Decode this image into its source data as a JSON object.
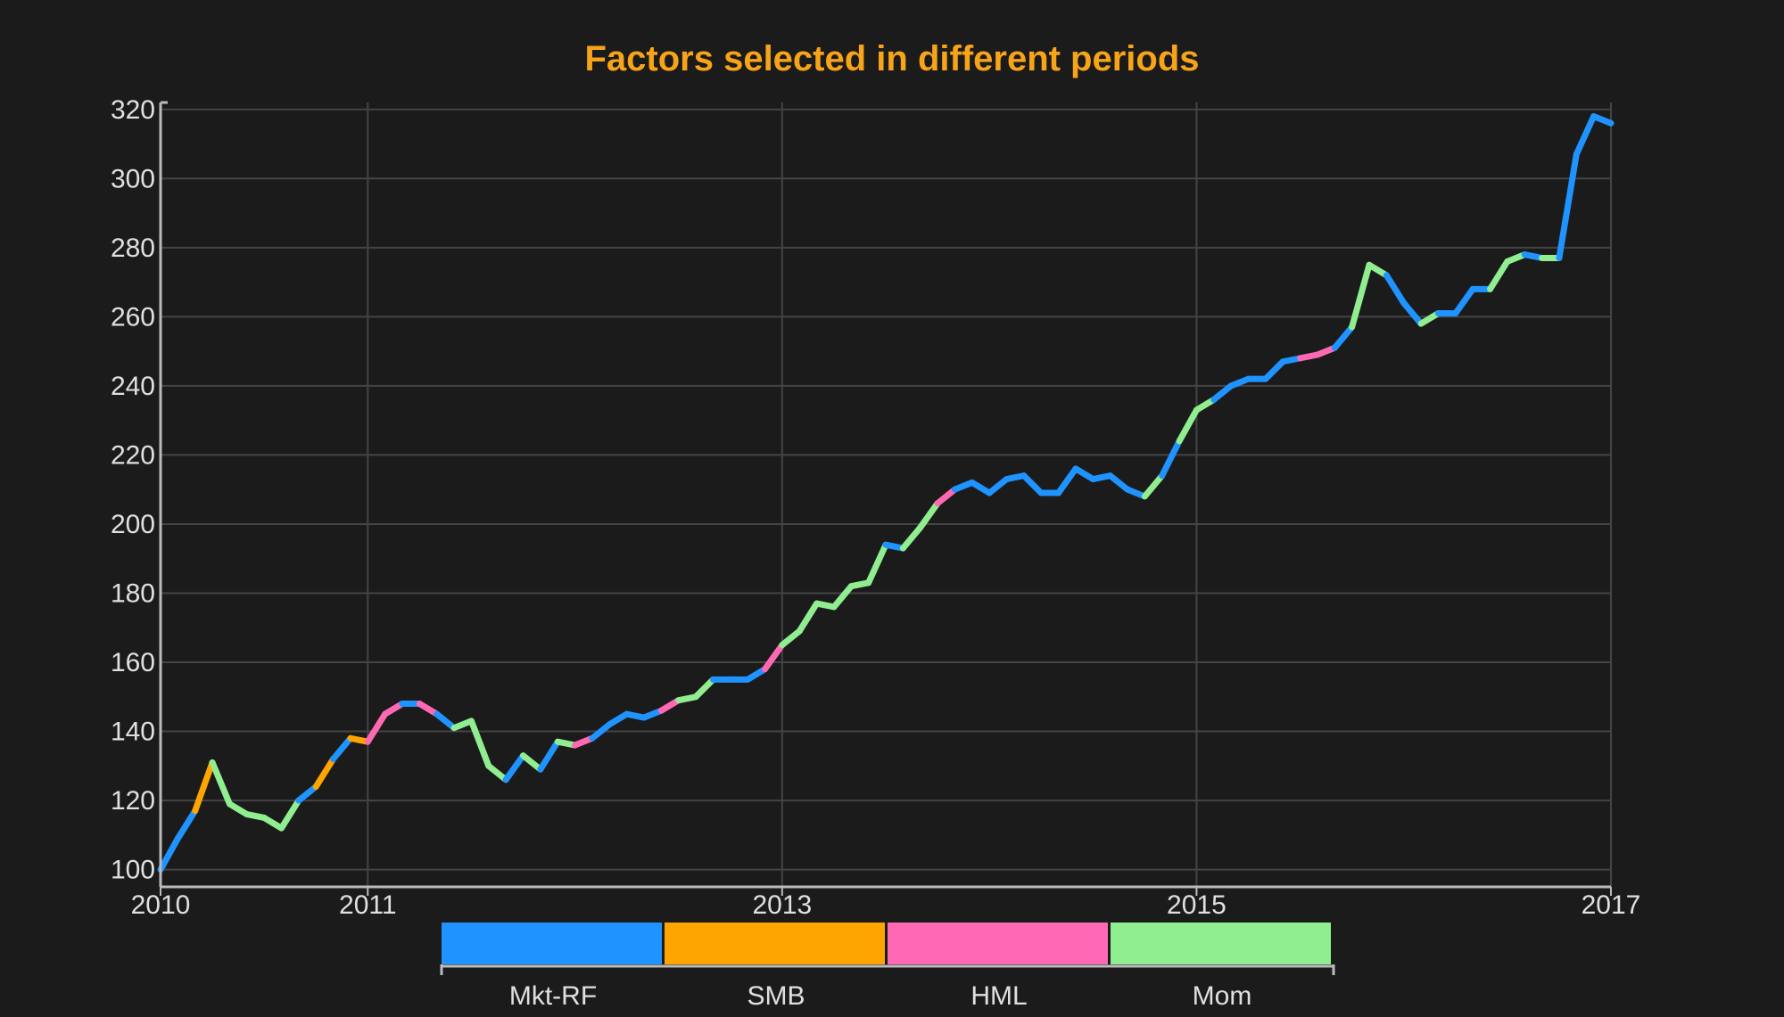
{
  "chart_data": {
    "type": "line",
    "title": "Factors selected in different periods",
    "xlabel": "",
    "ylabel": "",
    "y_ticks": [
      "100",
      "120",
      "140",
      "160",
      "180",
      "200",
      "220",
      "240",
      "260",
      "280",
      "300",
      "320"
    ],
    "x_ticks": [
      "2010",
      "2011",
      "2013",
      "2015",
      "2017"
    ],
    "ylim": [
      95,
      322
    ],
    "grid": true,
    "legend_position": "bottom",
    "factors": [
      {
        "name": "Mkt-RF",
        "color": "#1f93ff"
      },
      {
        "name": "SMB",
        "color": "#ffa500"
      },
      {
        "name": "HML",
        "color": "#ff69b4"
      },
      {
        "name": "Mom",
        "color": "#90ee90"
      }
    ],
    "points": [
      {
        "x": "2010-01",
        "y": 100,
        "f": "Mkt-RF"
      },
      {
        "x": "2010-02",
        "y": 109,
        "f": "Mkt-RF"
      },
      {
        "x": "2010-03",
        "y": 117,
        "f": "Mkt-RF"
      },
      {
        "x": "2010-04",
        "y": 131,
        "f": "SMB"
      },
      {
        "x": "2010-05",
        "y": 119,
        "f": "Mom"
      },
      {
        "x": "2010-06",
        "y": 116,
        "f": "Mom"
      },
      {
        "x": "2010-07",
        "y": 115,
        "f": "Mom"
      },
      {
        "x": "2010-08",
        "y": 112,
        "f": "Mom"
      },
      {
        "x": "2010-09",
        "y": 120,
        "f": "Mom"
      },
      {
        "x": "2010-10",
        "y": 124,
        "f": "Mkt-RF"
      },
      {
        "x": "2010-11",
        "y": 132,
        "f": "SMB"
      },
      {
        "x": "2010-12",
        "y": 138,
        "f": "Mkt-RF"
      },
      {
        "x": "2011-01",
        "y": 137,
        "f": "SMB"
      },
      {
        "x": "2011-02",
        "y": 145,
        "f": "HML"
      },
      {
        "x": "2011-03",
        "y": 148,
        "f": "HML"
      },
      {
        "x": "2011-04",
        "y": 148,
        "f": "Mkt-RF"
      },
      {
        "x": "2011-05",
        "y": 145,
        "f": "HML"
      },
      {
        "x": "2011-06",
        "y": 141,
        "f": "Mkt-RF"
      },
      {
        "x": "2011-07",
        "y": 143,
        "f": "Mom"
      },
      {
        "x": "2011-08",
        "y": 130,
        "f": "Mom"
      },
      {
        "x": "2011-09",
        "y": 126,
        "f": "Mom"
      },
      {
        "x": "2011-10",
        "y": 133,
        "f": "Mkt-RF"
      },
      {
        "x": "2011-11",
        "y": 129,
        "f": "Mom"
      },
      {
        "x": "2011-12",
        "y": 137,
        "f": "Mkt-RF"
      },
      {
        "x": "2012-01",
        "y": 136,
        "f": "Mom"
      },
      {
        "x": "2012-02",
        "y": 138,
        "f": "HML"
      },
      {
        "x": "2012-03",
        "y": 142,
        "f": "Mkt-RF"
      },
      {
        "x": "2012-04",
        "y": 145,
        "f": "Mkt-RF"
      },
      {
        "x": "2012-05",
        "y": 144,
        "f": "Mkt-RF"
      },
      {
        "x": "2012-06",
        "y": 146,
        "f": "Mkt-RF"
      },
      {
        "x": "2012-07",
        "y": 149,
        "f": "HML"
      },
      {
        "x": "2012-08",
        "y": 150,
        "f": "Mom"
      },
      {
        "x": "2012-09",
        "y": 155,
        "f": "Mom"
      },
      {
        "x": "2012-10",
        "y": 155,
        "f": "Mkt-RF"
      },
      {
        "x": "2012-11",
        "y": 155,
        "f": "Mkt-RF"
      },
      {
        "x": "2012-12",
        "y": 158,
        "f": "Mkt-RF"
      },
      {
        "x": "2013-01",
        "y": 165,
        "f": "HML"
      },
      {
        "x": "2013-02",
        "y": 169,
        "f": "Mom"
      },
      {
        "x": "2013-03",
        "y": 177,
        "f": "Mom"
      },
      {
        "x": "2013-04",
        "y": 176,
        "f": "Mom"
      },
      {
        "x": "2013-05",
        "y": 182,
        "f": "Mom"
      },
      {
        "x": "2013-06",
        "y": 183,
        "f": "Mom"
      },
      {
        "x": "2013-07",
        "y": 194,
        "f": "Mom"
      },
      {
        "x": "2013-08",
        "y": 193,
        "f": "Mkt-RF"
      },
      {
        "x": "2013-09",
        "y": 199,
        "f": "Mom"
      },
      {
        "x": "2013-10",
        "y": 206,
        "f": "Mom"
      },
      {
        "x": "2013-11",
        "y": 210,
        "f": "HML"
      },
      {
        "x": "2013-12",
        "y": 212,
        "f": "Mkt-RF"
      },
      {
        "x": "2014-01",
        "y": 209,
        "f": "Mkt-RF"
      },
      {
        "x": "2014-02",
        "y": 213,
        "f": "Mkt-RF"
      },
      {
        "x": "2014-03",
        "y": 214,
        "f": "Mkt-RF"
      },
      {
        "x": "2014-04",
        "y": 209,
        "f": "Mkt-RF"
      },
      {
        "x": "2014-05",
        "y": 209,
        "f": "Mkt-RF"
      },
      {
        "x": "2014-06",
        "y": 216,
        "f": "Mkt-RF"
      },
      {
        "x": "2014-07",
        "y": 213,
        "f": "Mkt-RF"
      },
      {
        "x": "2014-08",
        "y": 214,
        "f": "Mkt-RF"
      },
      {
        "x": "2014-09",
        "y": 210,
        "f": "Mkt-RF"
      },
      {
        "x": "2014-10",
        "y": 208,
        "f": "Mkt-RF"
      },
      {
        "x": "2014-11",
        "y": 214,
        "f": "Mom"
      },
      {
        "x": "2014-12",
        "y": 224,
        "f": "Mkt-RF"
      },
      {
        "x": "2015-01",
        "y": 233,
        "f": "Mom"
      },
      {
        "x": "2015-02",
        "y": 236,
        "f": "Mom"
      },
      {
        "x": "2015-03",
        "y": 240,
        "f": "Mkt-RF"
      },
      {
        "x": "2015-04",
        "y": 242,
        "f": "Mkt-RF"
      },
      {
        "x": "2015-05",
        "y": 242,
        "f": "Mkt-RF"
      },
      {
        "x": "2015-06",
        "y": 247,
        "f": "Mkt-RF"
      },
      {
        "x": "2015-07",
        "y": 248,
        "f": "Mkt-RF"
      },
      {
        "x": "2015-08",
        "y": 249,
        "f": "HML"
      },
      {
        "x": "2015-09",
        "y": 251,
        "f": "HML"
      },
      {
        "x": "2015-10",
        "y": 257,
        "f": "Mkt-RF"
      },
      {
        "x": "2015-11",
        "y": 275,
        "f": "Mom"
      },
      {
        "x": "2015-12",
        "y": 272,
        "f": "Mom"
      },
      {
        "x": "2016-01",
        "y": 264,
        "f": "Mkt-RF"
      },
      {
        "x": "2016-02",
        "y": 258,
        "f": "Mkt-RF"
      },
      {
        "x": "2016-03",
        "y": 261,
        "f": "Mom"
      },
      {
        "x": "2016-04",
        "y": 261,
        "f": "Mkt-RF"
      },
      {
        "x": "2016-05",
        "y": 268,
        "f": "Mkt-RF"
      },
      {
        "x": "2016-06",
        "y": 268,
        "f": "Mkt-RF"
      },
      {
        "x": "2016-07",
        "y": 276,
        "f": "Mom"
      },
      {
        "x": "2016-08",
        "y": 278,
        "f": "Mom"
      },
      {
        "x": "2016-09",
        "y": 277,
        "f": "Mkt-RF"
      },
      {
        "x": "2016-10",
        "y": 277,
        "f": "Mom"
      },
      {
        "x": "2016-11",
        "y": 307,
        "f": "Mkt-RF"
      },
      {
        "x": "2016-12",
        "y": 318,
        "f": "Mkt-RF"
      },
      {
        "x": "2017-01",
        "y": 316,
        "f": "Mkt-RF"
      }
    ]
  }
}
